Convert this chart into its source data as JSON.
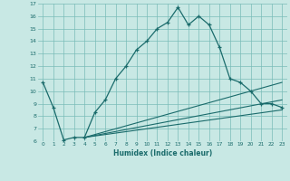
{
  "xlabel": "Humidex (Indice chaleur)",
  "bg_color": "#c8e8e4",
  "grid_color": "#7abcb8",
  "line_color": "#1a6b6b",
  "xlim": [
    -0.5,
    23.5
  ],
  "ylim": [
    6,
    17
  ],
  "xticks": [
    0,
    1,
    2,
    3,
    4,
    5,
    6,
    7,
    8,
    9,
    10,
    11,
    12,
    13,
    14,
    15,
    16,
    17,
    18,
    19,
    20,
    21,
    22,
    23
  ],
  "yticks": [
    6,
    7,
    8,
    9,
    10,
    11,
    12,
    13,
    14,
    15,
    16,
    17
  ],
  "line1_x": [
    0,
    1,
    2,
    3,
    4,
    5,
    6,
    7,
    8,
    9,
    10,
    11,
    12,
    13,
    14,
    15,
    16,
    17,
    18,
    19,
    20,
    21,
    22,
    23
  ],
  "line1_y": [
    10.7,
    8.7,
    6.1,
    6.3,
    6.3,
    8.3,
    9.3,
    11.0,
    12.0,
    13.3,
    14.0,
    15.0,
    15.5,
    16.7,
    15.3,
    16.0,
    15.3,
    13.5,
    11.0,
    10.7,
    10.0,
    9.0,
    9.0,
    8.7
  ],
  "line2_x": [
    4,
    23
  ],
  "line2_y": [
    6.3,
    10.7
  ],
  "line3_x": [
    4,
    23
  ],
  "line3_y": [
    6.3,
    9.3
  ],
  "line4_x": [
    4,
    23
  ],
  "line4_y": [
    6.3,
    8.5
  ]
}
